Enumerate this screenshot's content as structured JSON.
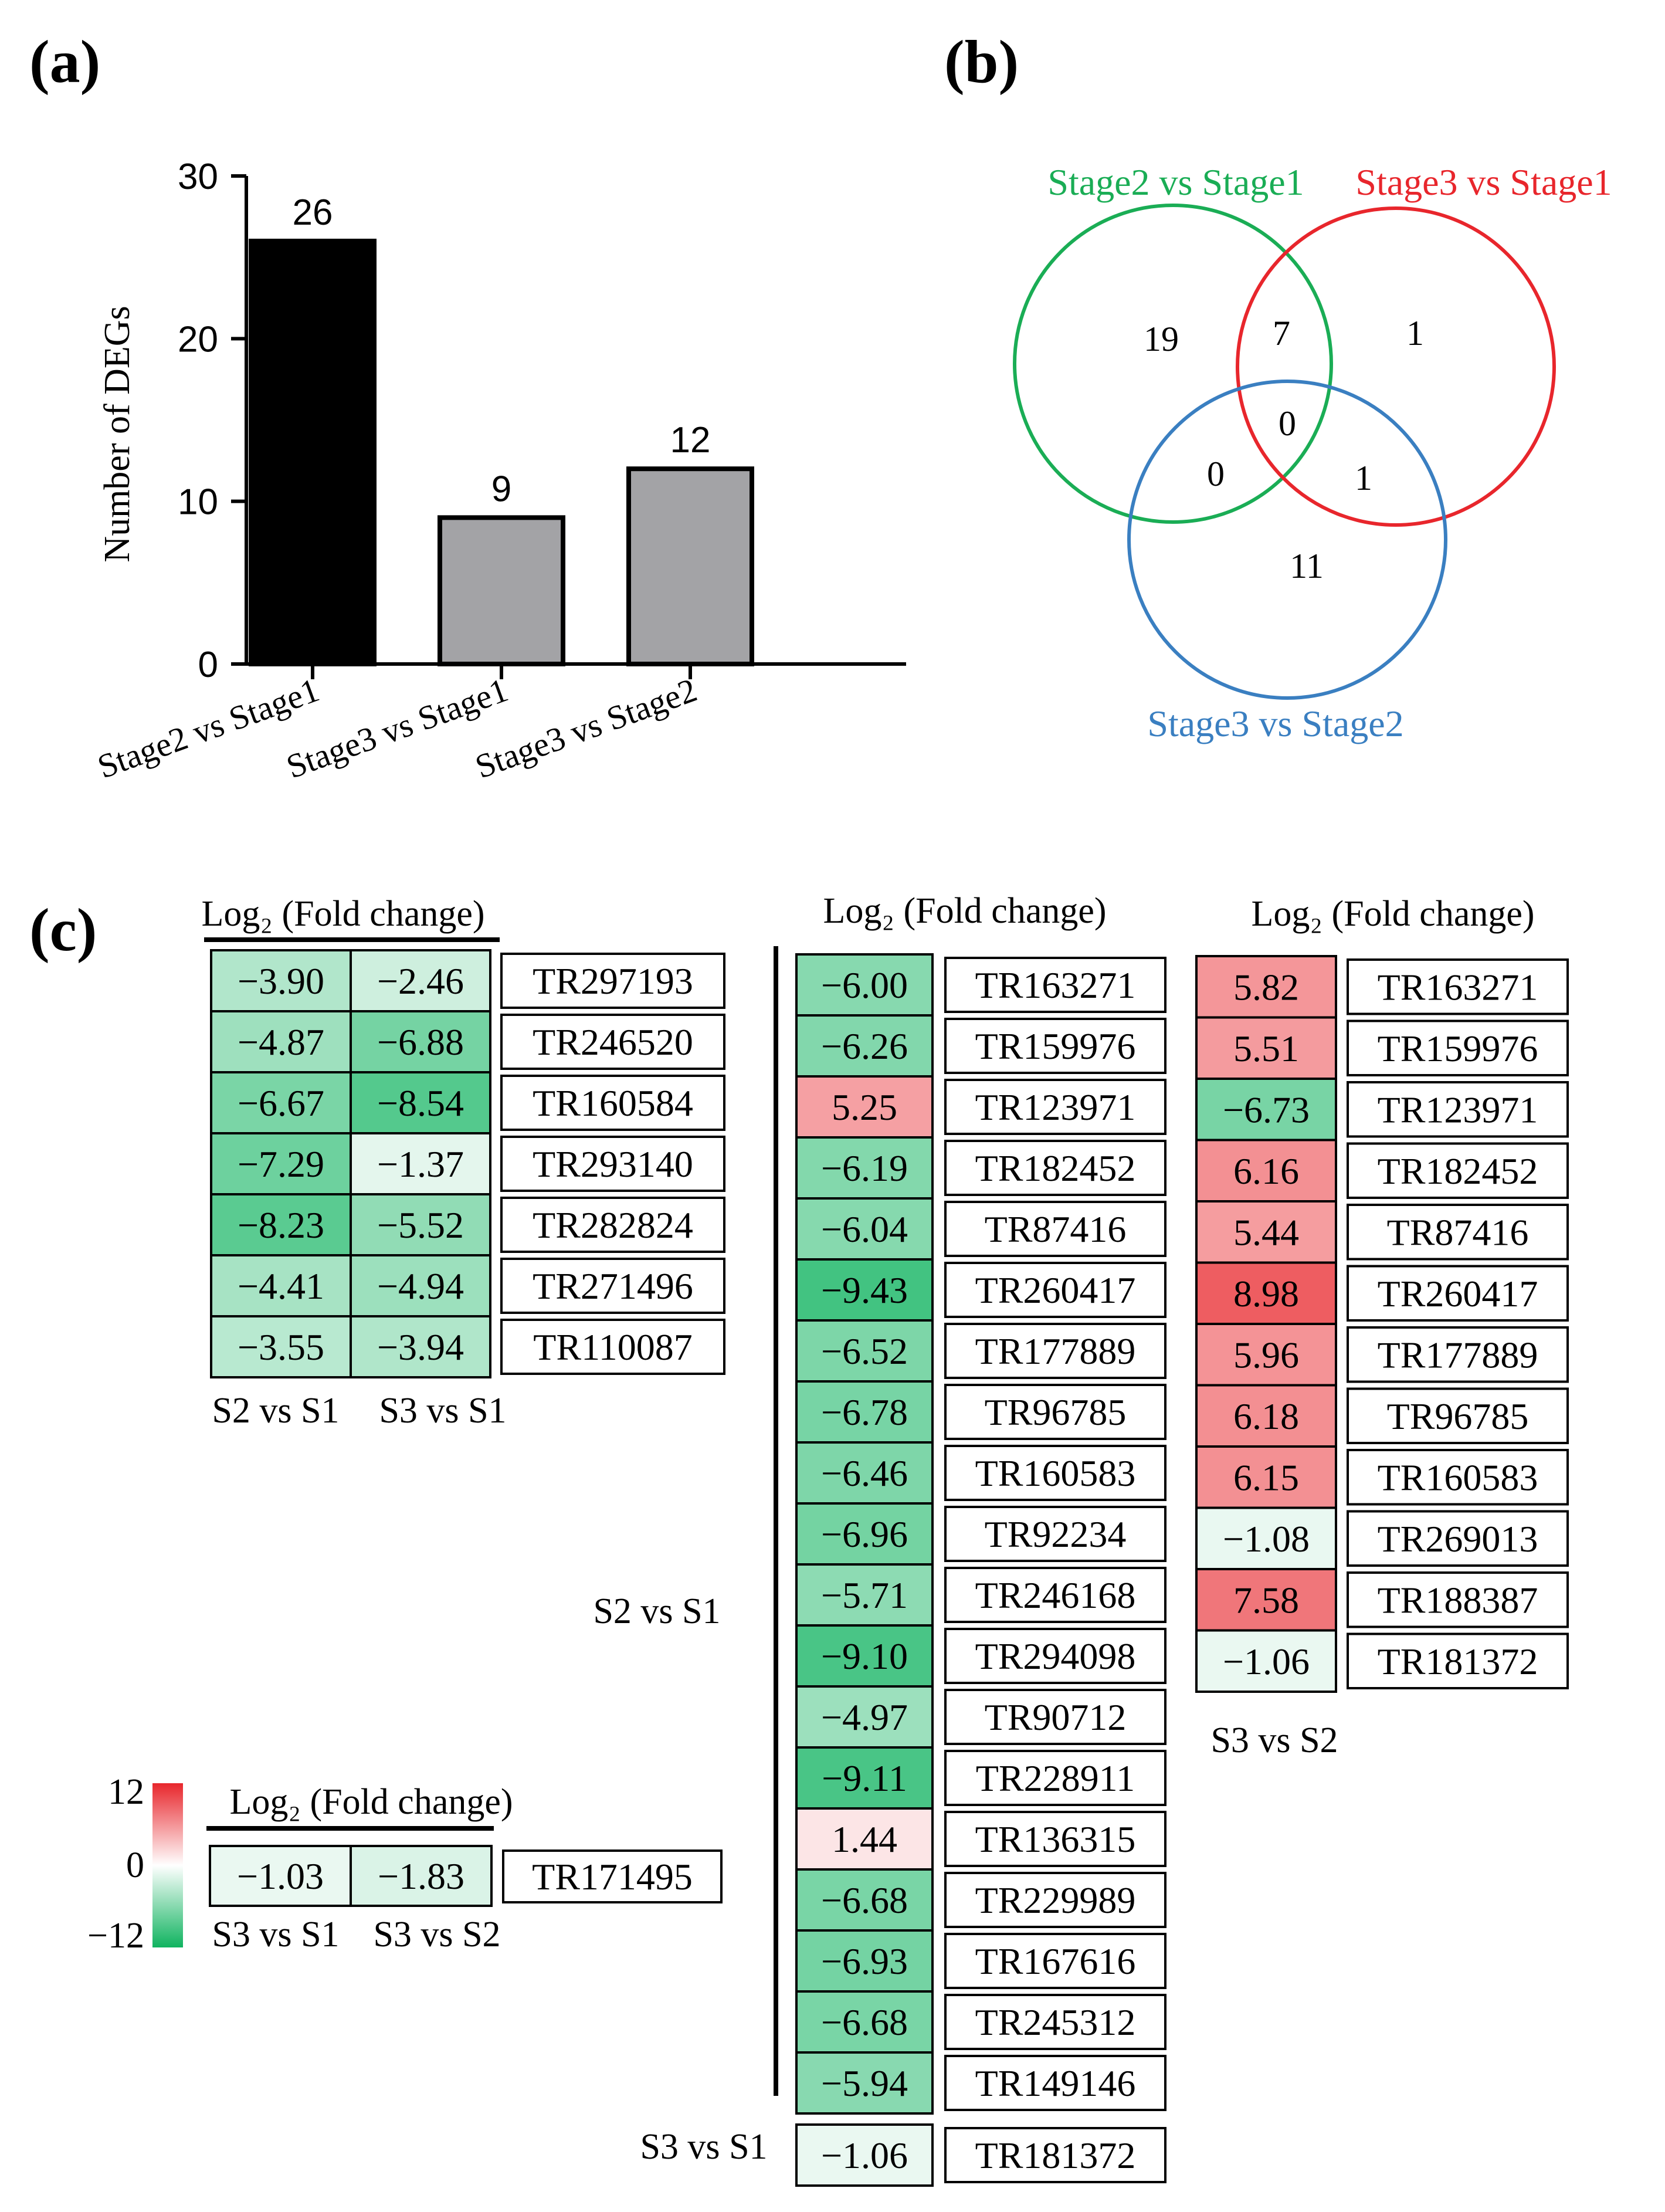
{
  "panel_labels": {
    "a": "(a)",
    "b": "(b)",
    "c": "(c)"
  },
  "chart_data": [
    {
      "type": "bar",
      "ylabel": "Number of DEGs",
      "ylim": [
        0,
        30
      ],
      "yticks": [
        "0",
        "10",
        "20",
        "30"
      ],
      "categories": [
        "Stage2 vs Stage1",
        "Stage3 vs Stage1",
        "Stage3 vs Stage2"
      ],
      "values": [
        26,
        9,
        12
      ],
      "value_labels": [
        "26",
        "9",
        "12"
      ],
      "bar_colors": [
        "#000000",
        "#a3a3a6",
        "#a3a3a6"
      ]
    },
    {
      "type": "venn",
      "sets": [
        {
          "label": "Stage2 vs Stage1",
          "color": "#1aad55"
        },
        {
          "label": "Stage3 vs Stage1",
          "color": "#e8262c"
        },
        {
          "label": "Stage3 vs Stage2",
          "color": "#3a7fc1"
        }
      ],
      "regions": {
        "only_s2s1": "19",
        "s2s1_s3s1": "7",
        "only_s3s1": "1",
        "all_three": "0",
        "s2s1_s3s2": "0",
        "s3s1_s3s2": "1",
        "only_s3s2": "11"
      }
    },
    {
      "type": "heatmap",
      "title": "Log₂ (Fold change)",
      "colorscale": {
        "min": -12,
        "max": 12,
        "labels": [
          "12",
          "0",
          "−12"
        ],
        "colors": [
          "#e8262c",
          "#ffffff",
          "#0fb35f"
        ]
      },
      "tables": [
        {
          "title": "Log₂ (Fold change)",
          "columns": [
            "S2 vs S1",
            "S3 vs S1"
          ],
          "rows": [
            {
              "id": "TR297193",
              "values": [
                -3.9,
                -2.46
              ],
              "labels": [
                "−3.90",
                "−2.46"
              ]
            },
            {
              "id": "TR246520",
              "values": [
                -4.87,
                -6.88
              ],
              "labels": [
                "−4.87",
                "−6.88"
              ]
            },
            {
              "id": "TR160584",
              "values": [
                -6.67,
                -8.54
              ],
              "labels": [
                "−6.67",
                "−8.54"
              ]
            },
            {
              "id": "TR293140",
              "values": [
                -7.29,
                -1.37
              ],
              "labels": [
                "−7.29",
                "−1.37"
              ]
            },
            {
              "id": "TR282824",
              "values": [
                -8.23,
                -5.52
              ],
              "labels": [
                "−8.23",
                "−5.52"
              ]
            },
            {
              "id": "TR271496",
              "values": [
                -4.41,
                -4.94
              ],
              "labels": [
                "−4.41",
                "−4.94"
              ]
            },
            {
              "id": "TR110087",
              "values": [
                -3.55,
                -3.94
              ],
              "labels": [
                "−3.55",
                "−3.94"
              ]
            }
          ]
        },
        {
          "title": "Log₂ (Fold change)",
          "columns": [
            "S3 vs S1",
            "S3 vs S2"
          ],
          "rows": [
            {
              "id": "TR171495",
              "values": [
                -1.03,
                -1.83
              ],
              "labels": [
                "−1.03",
                "−1.83"
              ]
            }
          ]
        },
        {
          "title": "Log₂ (Fold change)",
          "group_label": "S2 vs S1",
          "rows": [
            {
              "id": "TR163271",
              "value": -6.0,
              "label": "−6.00"
            },
            {
              "id": "TR159976",
              "value": -6.26,
              "label": "−6.26"
            },
            {
              "id": "TR123971",
              "value": 5.25,
              "label": "5.25"
            },
            {
              "id": "TR182452",
              "value": -6.19,
              "label": "−6.19"
            },
            {
              "id": "TR87416",
              "value": -6.04,
              "label": "−6.04"
            },
            {
              "id": "TR260417",
              "value": -9.43,
              "label": "−9.43"
            },
            {
              "id": "TR177889",
              "value": -6.52,
              "label": "−6.52"
            },
            {
              "id": "TR96785",
              "value": -6.78,
              "label": "−6.78"
            },
            {
              "id": "TR160583",
              "value": -6.46,
              "label": "−6.46"
            },
            {
              "id": "TR92234",
              "value": -6.96,
              "label": "−6.96"
            },
            {
              "id": "TR246168",
              "value": -5.71,
              "label": "−5.71"
            },
            {
              "id": "TR294098",
              "value": -9.1,
              "label": "−9.10"
            },
            {
              "id": "TR90712",
              "value": -4.97,
              "label": "−4.97"
            },
            {
              "id": "TR228911",
              "value": -9.11,
              "label": "−9.11"
            },
            {
              "id": "TR136315",
              "value": 1.44,
              "label": "1.44"
            },
            {
              "id": "TR229989",
              "value": -6.68,
              "label": "−6.68"
            },
            {
              "id": "TR167616",
              "value": -6.93,
              "label": "−6.93"
            },
            {
              "id": "TR245312",
              "value": -6.68,
              "label": "−6.68"
            },
            {
              "id": "TR149146",
              "value": -5.94,
              "label": "−5.94"
            }
          ],
          "extra": {
            "group_label": "S3 vs S1",
            "id": "TR181372",
            "value": -1.06,
            "label": "−1.06"
          }
        },
        {
          "title": "Log₂ (Fold change)",
          "column": "S3 vs S2",
          "rows": [
            {
              "id": "TR163271",
              "value": 5.82,
              "label": "5.82"
            },
            {
              "id": "TR159976",
              "value": 5.51,
              "label": "5.51"
            },
            {
              "id": "TR123971",
              "value": -6.73,
              "label": "−6.73"
            },
            {
              "id": "TR182452",
              "value": 6.16,
              "label": "6.16"
            },
            {
              "id": "TR87416",
              "value": 5.44,
              "label": "5.44"
            },
            {
              "id": "TR260417",
              "value": 8.98,
              "label": "8.98"
            },
            {
              "id": "TR177889",
              "value": 5.96,
              "label": "5.96"
            },
            {
              "id": "TR96785",
              "value": 6.18,
              "label": "6.18"
            },
            {
              "id": "TR160583",
              "value": 6.15,
              "label": "6.15"
            },
            {
              "id": "TR269013",
              "value": -1.08,
              "label": "−1.08"
            },
            {
              "id": "TR188387",
              "value": 7.58,
              "label": "7.58"
            },
            {
              "id": "TR181372",
              "value": -1.06,
              "label": "−1.06"
            }
          ]
        }
      ]
    }
  ]
}
